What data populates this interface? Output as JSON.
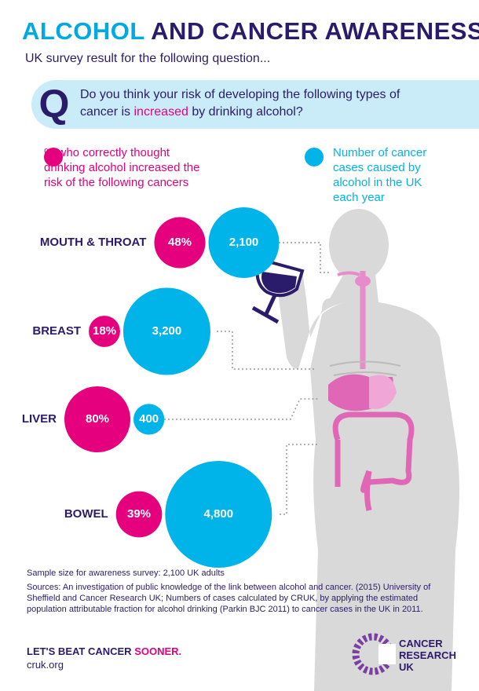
{
  "chart_data": {
    "type": "bubble",
    "title": [
      "ALCOHOL",
      "AND CANCER AWARENESS"
    ],
    "subtitle": "UK survey result for the following question...",
    "question_mark": "Q",
    "question": [
      "Do you think your risk of developing the following types of cancer is",
      "increased",
      "by drinking alcohol?"
    ],
    "categories": [
      "MOUTH & THROAT",
      "BREAST",
      "LIVER",
      "BOWEL"
    ],
    "series": [
      {
        "name": "% who correctly thought drinking alcohol increased the risk of the following cancers",
        "color": "#e5007e",
        "values": [
          48,
          18,
          80,
          39
        ],
        "value_labels": [
          "48%",
          "18%",
          "80%",
          "39%"
        ]
      },
      {
        "name": "Number of cancer cases caused by alcohol in the UK each year",
        "color": "#00b3e8",
        "values": [
          2100,
          3200,
          400,
          4800
        ],
        "value_labels": [
          "2,100",
          "3,200",
          "400",
          "4,800"
        ]
      }
    ],
    "notes": [
      "Sample size for awareness survey: 2,100 UK adults",
      "Sources: An investigation of public knowledge of the link between alcohol and cancer. (2015) University of Sheffield and Cancer Research UK; Numbers of cases calculated by CRUK, by applying the estimated population attributable fraction for alcohol drinking (Parkin BJC 2011) to cancer cases in the UK in 2011."
    ],
    "slogan": [
      "LET'S BEAT CANCER",
      "SOONER."
    ],
    "website": "cruk.org",
    "logo": [
      "CANCER",
      "RESEARCH",
      "UK"
    ]
  }
}
